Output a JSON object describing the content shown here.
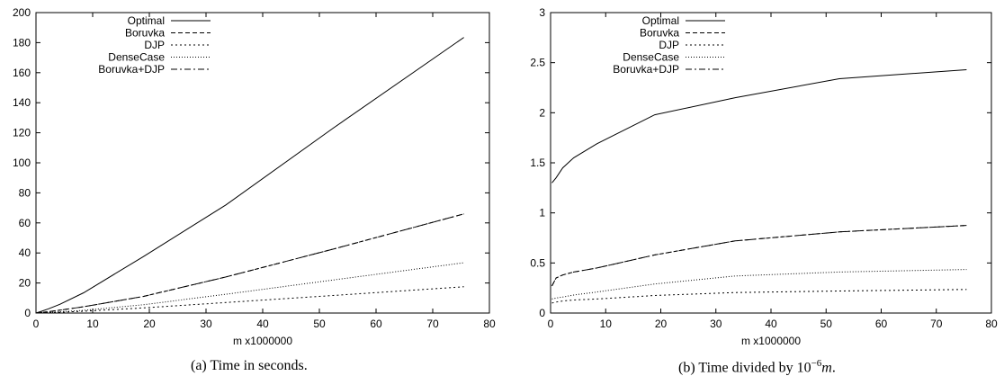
{
  "chart_data": [
    {
      "type": "line",
      "title": "",
      "xlabel": "m x1000000",
      "ylabel": "",
      "xlim": [
        0,
        80
      ],
      "ylim": [
        0,
        200
      ],
      "xticks": [
        0,
        10,
        20,
        30,
        40,
        50,
        60,
        70,
        80
      ],
      "yticks": [
        0,
        20,
        40,
        60,
        80,
        100,
        120,
        140,
        160,
        180,
        200
      ],
      "grid": false,
      "legend": "top-left",
      "caption": "(a) Time in seconds.",
      "series": [
        {
          "name": "Optimal",
          "dash": "solid",
          "x": [
            0,
            0.25,
            1,
            2.2,
            4.2,
            8.4,
            18.9,
            33.5,
            52.4,
            75.5
          ],
          "y": [
            0,
            0.3,
            1.2,
            2.8,
            5.8,
            13.5,
            37.5,
            72,
            123,
            183.5
          ]
        },
        {
          "name": "Boruvka",
          "dash": "dashed",
          "x": [
            0,
            0.25,
            1,
            2.2,
            4.2,
            8.4,
            18.9,
            33.5,
            52.4,
            75.5
          ],
          "y": [
            0,
            0.1,
            0.4,
            0.9,
            1.9,
            4.2,
            11,
            24,
            42.5,
            66
          ]
        },
        {
          "name": "DJP",
          "dash": "dotted",
          "x": [
            0,
            0.25,
            1,
            2.2,
            4.2,
            8.4,
            18.9,
            33.5,
            52.4,
            75.5
          ],
          "y": [
            0,
            0.03,
            0.1,
            0.3,
            0.55,
            1.2,
            3.4,
            7,
            11.7,
            17.5
          ]
        },
        {
          "name": "DenseCase",
          "dash": "fine-dotted",
          "x": [
            0,
            0.25,
            1,
            2.2,
            4.2,
            8.4,
            18.9,
            33.5,
            52.4,
            75.5
          ],
          "y": [
            0,
            0.04,
            0.15,
            0.4,
            0.8,
            1.8,
            5.5,
            12.5,
            22,
            33.5
          ]
        },
        {
          "name": "Boruvka+DJP",
          "dash": "dash-dot",
          "x": [
            0,
            0.25,
            1,
            2.2,
            4.2,
            8.4,
            18.9,
            33.5,
            52.4,
            75.5
          ],
          "y": [
            0,
            0.1,
            0.4,
            0.9,
            1.9,
            4.2,
            11,
            24,
            42.5,
            66
          ]
        }
      ]
    },
    {
      "type": "line",
      "title": "",
      "xlabel": "m x1000000",
      "ylabel": "",
      "xlim": [
        0,
        80
      ],
      "ylim": [
        0,
        3
      ],
      "xticks": [
        0,
        10,
        20,
        30,
        40,
        50,
        60,
        70,
        80
      ],
      "yticks": [
        "0",
        "0.5",
        "1",
        "1.5",
        "2",
        "2.5",
        "3"
      ],
      "grid": false,
      "legend": "top-left",
      "caption": "(b) Time divided by 10−6m.",
      "series": [
        {
          "name": "Optimal",
          "dash": "solid",
          "x": [
            0.25,
            1,
            2.2,
            4.2,
            8.4,
            18.9,
            33.5,
            52.4,
            75.5
          ],
          "y": [
            1.3,
            1.35,
            1.45,
            1.55,
            1.69,
            1.98,
            2.15,
            2.34,
            2.43
          ]
        },
        {
          "name": "Boruvka",
          "dash": "dashed",
          "x": [
            0.25,
            1,
            2.2,
            4.2,
            8.4,
            18.9,
            33.5,
            52.4,
            75.5
          ],
          "y": [
            0.27,
            0.35,
            0.38,
            0.41,
            0.45,
            0.58,
            0.72,
            0.81,
            0.875
          ]
        },
        {
          "name": "DJP",
          "dash": "dotted",
          "x": [
            0.25,
            1,
            2.2,
            4.2,
            8.4,
            18.9,
            33.5,
            52.4,
            75.5
          ],
          "y": [
            0.1,
            0.11,
            0.12,
            0.13,
            0.14,
            0.175,
            0.205,
            0.22,
            0.235
          ]
        },
        {
          "name": "DenseCase",
          "dash": "fine-dotted",
          "x": [
            0.25,
            1,
            2.2,
            4.2,
            8.4,
            18.9,
            33.5,
            52.4,
            75.5
          ],
          "y": [
            0.14,
            0.15,
            0.16,
            0.18,
            0.21,
            0.29,
            0.37,
            0.41,
            0.435
          ]
        },
        {
          "name": "Boruvka+DJP",
          "dash": "dash-dot",
          "x": [
            0.25,
            1,
            2.2,
            4.2,
            8.4,
            18.9,
            33.5,
            52.4,
            75.5
          ],
          "y": [
            0.27,
            0.35,
            0.38,
            0.41,
            0.45,
            0.58,
            0.72,
            0.81,
            0.875
          ]
        }
      ]
    }
  ],
  "captions": {
    "a": "(a) Time in seconds.",
    "b_prefix": "(b) Time divided by 10",
    "b_exponent": "−6",
    "b_var": "m",
    "b_suffix": "."
  }
}
